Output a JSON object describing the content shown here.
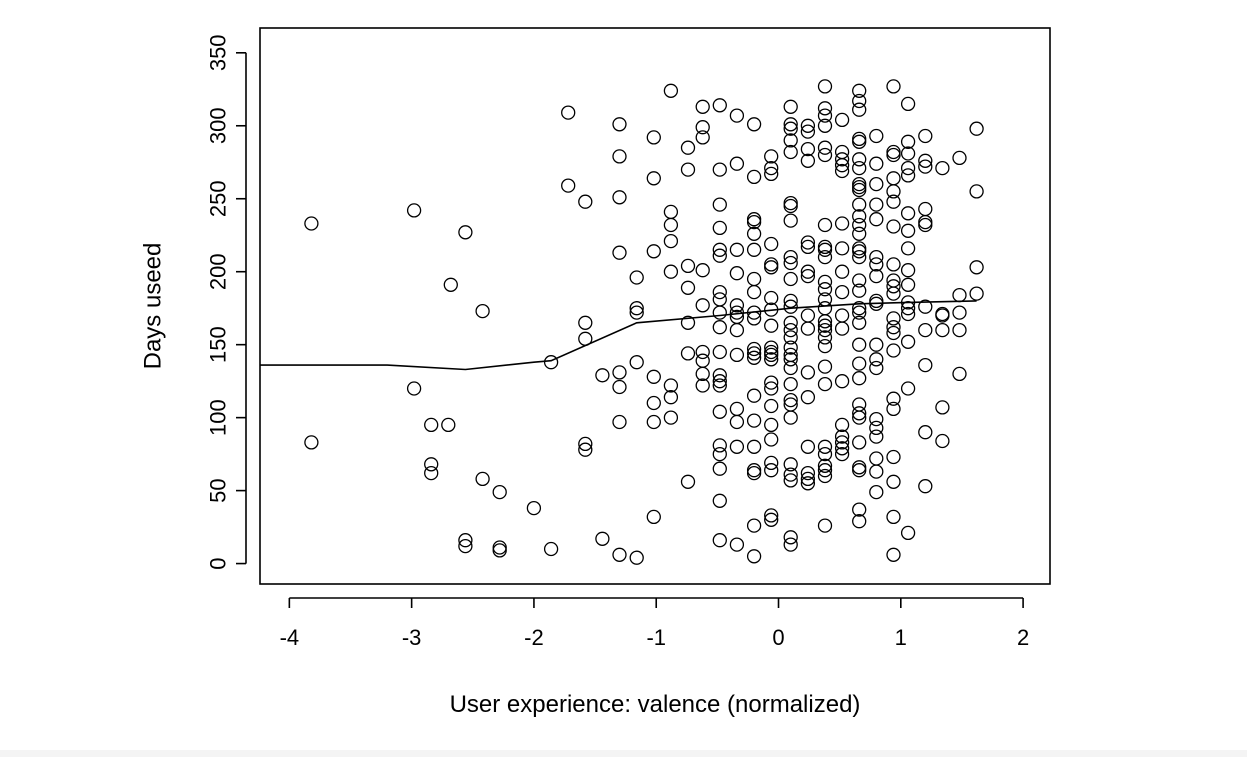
{
  "chart_data": {
    "type": "scatter",
    "xlabel": "User experience: valence (normalized)",
    "ylabel": "Days useed",
    "xlim": [
      -4.24,
      2.22
    ],
    "ylim": [
      -14,
      367
    ],
    "xticks": [
      -4,
      -3,
      -2,
      -1,
      0,
      1,
      2
    ],
    "yticks": [
      0,
      50,
      100,
      150,
      200,
      250,
      300,
      350
    ],
    "grid": false,
    "legend": "none",
    "colors": {
      "points": "#000000",
      "line": "#000000",
      "frame": "#000000"
    },
    "points": [
      [
        -3.82,
        233
      ],
      [
        -3.82,
        83
      ],
      [
        -2.98,
        242
      ],
      [
        -2.98,
        120
      ],
      [
        -2.84,
        95
      ],
      [
        -2.84,
        68
      ],
      [
        -2.84,
        62
      ],
      [
        -2.7,
        95
      ],
      [
        -2.68,
        191
      ],
      [
        -2.56,
        227
      ],
      [
        -2.56,
        16
      ],
      [
        -2.56,
        12
      ],
      [
        -2.42,
        173
      ],
      [
        -2.42,
        58
      ],
      [
        -2.28,
        49
      ],
      [
        -2.28,
        11
      ],
      [
        -2.28,
        9
      ],
      [
        -2.0,
        38
      ],
      [
        -1.86,
        138
      ],
      [
        -1.86,
        10
      ],
      [
        -1.72,
        309
      ],
      [
        -1.72,
        259
      ],
      [
        -1.58,
        248
      ],
      [
        -1.58,
        165
      ],
      [
        -1.58,
        154
      ],
      [
        -1.58,
        82
      ],
      [
        -1.58,
        78
      ],
      [
        -1.44,
        129
      ],
      [
        -1.44,
        17
      ],
      [
        -1.3,
        301
      ],
      [
        -1.3,
        279
      ],
      [
        -1.3,
        251
      ],
      [
        -1.3,
        213
      ],
      [
        -1.3,
        131
      ],
      [
        -1.3,
        121
      ],
      [
        -1.3,
        97
      ],
      [
        -1.3,
        6
      ],
      [
        -1.16,
        196
      ],
      [
        -1.16,
        175
      ],
      [
        -1.16,
        172
      ],
      [
        -1.16,
        138
      ],
      [
        -1.16,
        4
      ],
      [
        -1.02,
        292
      ],
      [
        -1.02,
        264
      ],
      [
        -1.02,
        214
      ],
      [
        -1.02,
        128
      ],
      [
        -1.02,
        110
      ],
      [
        -1.02,
        97
      ],
      [
        -1.02,
        32
      ],
      [
        -0.88,
        324
      ],
      [
        -0.88,
        241
      ],
      [
        -0.88,
        232
      ],
      [
        -0.88,
        221
      ],
      [
        -0.88,
        200
      ],
      [
        -0.88,
        122
      ],
      [
        -0.88,
        114
      ],
      [
        -0.88,
        100
      ],
      [
        -0.74,
        285
      ],
      [
        -0.74,
        270
      ],
      [
        -0.74,
        204
      ],
      [
        -0.74,
        189
      ],
      [
        -0.74,
        165
      ],
      [
        -0.74,
        144
      ],
      [
        -0.74,
        56
      ],
      [
        -0.62,
        313
      ],
      [
        -0.62,
        299
      ],
      [
        -0.62,
        292
      ],
      [
        -0.62,
        201
      ],
      [
        -0.62,
        177
      ],
      [
        -0.62,
        145
      ],
      [
        -0.62,
        139
      ],
      [
        -0.62,
        130
      ],
      [
        -0.62,
        122
      ],
      [
        -0.48,
        314
      ],
      [
        -0.48,
        270
      ],
      [
        -0.48,
        246
      ],
      [
        -0.48,
        230
      ],
      [
        -0.48,
        215
      ],
      [
        -0.48,
        211
      ],
      [
        -0.48,
        186
      ],
      [
        -0.48,
        181
      ],
      [
        -0.48,
        172
      ],
      [
        -0.48,
        162
      ],
      [
        -0.48,
        145
      ],
      [
        -0.48,
        129
      ],
      [
        -0.48,
        125
      ],
      [
        -0.48,
        122
      ],
      [
        -0.48,
        104
      ],
      [
        -0.48,
        81
      ],
      [
        -0.48,
        75
      ],
      [
        -0.48,
        65
      ],
      [
        -0.48,
        43
      ],
      [
        -0.48,
        16
      ],
      [
        -0.34,
        307
      ],
      [
        -0.34,
        274
      ],
      [
        -0.34,
        215
      ],
      [
        -0.34,
        199
      ],
      [
        -0.34,
        177
      ],
      [
        -0.34,
        172
      ],
      [
        -0.34,
        169
      ],
      [
        -0.34,
        160
      ],
      [
        -0.34,
        143
      ],
      [
        -0.34,
        106
      ],
      [
        -0.34,
        97
      ],
      [
        -0.34,
        80
      ],
      [
        -0.34,
        13
      ],
      [
        -0.2,
        301
      ],
      [
        -0.2,
        265
      ],
      [
        -0.2,
        236
      ],
      [
        -0.2,
        234
      ],
      [
        -0.2,
        226
      ],
      [
        -0.2,
        215
      ],
      [
        -0.2,
        195
      ],
      [
        -0.2,
        186
      ],
      [
        -0.2,
        172
      ],
      [
        -0.2,
        168
      ],
      [
        -0.2,
        147
      ],
      [
        -0.2,
        144
      ],
      [
        -0.2,
        141
      ],
      [
        -0.2,
        115
      ],
      [
        -0.2,
        98
      ],
      [
        -0.2,
        80
      ],
      [
        -0.2,
        64
      ],
      [
        -0.2,
        62
      ],
      [
        -0.2,
        26
      ],
      [
        -0.2,
        5
      ],
      [
        -0.06,
        279
      ],
      [
        -0.06,
        271
      ],
      [
        -0.06,
        267
      ],
      [
        -0.06,
        219
      ],
      [
        -0.06,
        205
      ],
      [
        -0.06,
        203
      ],
      [
        -0.06,
        182
      ],
      [
        -0.06,
        174
      ],
      [
        -0.06,
        163
      ],
      [
        -0.06,
        148
      ],
      [
        -0.06,
        145
      ],
      [
        -0.06,
        143
      ],
      [
        -0.06,
        140
      ],
      [
        -0.06,
        124
      ],
      [
        -0.06,
        120
      ],
      [
        -0.06,
        108
      ],
      [
        -0.06,
        95
      ],
      [
        -0.06,
        85
      ],
      [
        -0.06,
        69
      ],
      [
        -0.06,
        64
      ],
      [
        -0.06,
        33
      ],
      [
        -0.06,
        30
      ],
      [
        0.1,
        313
      ],
      [
        0.1,
        301
      ],
      [
        0.1,
        298
      ],
      [
        0.1,
        290
      ],
      [
        0.1,
        282
      ],
      [
        0.1,
        247
      ],
      [
        0.1,
        245
      ],
      [
        0.1,
        235
      ],
      [
        0.1,
        210
      ],
      [
        0.1,
        206
      ],
      [
        0.1,
        195
      ],
      [
        0.1,
        180
      ],
      [
        0.1,
        176
      ],
      [
        0.1,
        165
      ],
      [
        0.1,
        160
      ],
      [
        0.1,
        155
      ],
      [
        0.1,
        148
      ],
      [
        0.1,
        143
      ],
      [
        0.1,
        140
      ],
      [
        0.1,
        134
      ],
      [
        0.1,
        123
      ],
      [
        0.1,
        112
      ],
      [
        0.1,
        109
      ],
      [
        0.1,
        100
      ],
      [
        0.1,
        68
      ],
      [
        0.1,
        61
      ],
      [
        0.1,
        57
      ],
      [
        0.1,
        18
      ],
      [
        0.1,
        13
      ],
      [
        0.24,
        300
      ],
      [
        0.24,
        296
      ],
      [
        0.24,
        284
      ],
      [
        0.24,
        276
      ],
      [
        0.24,
        220
      ],
      [
        0.24,
        217
      ],
      [
        0.24,
        200
      ],
      [
        0.24,
        197
      ],
      [
        0.24,
        170
      ],
      [
        0.24,
        161
      ],
      [
        0.24,
        131
      ],
      [
        0.24,
        114
      ],
      [
        0.24,
        80
      ],
      [
        0.24,
        62
      ],
      [
        0.24,
        58
      ],
      [
        0.24,
        55
      ],
      [
        0.38,
        327
      ],
      [
        0.38,
        312
      ],
      [
        0.38,
        307
      ],
      [
        0.38,
        300
      ],
      [
        0.38,
        285
      ],
      [
        0.38,
        280
      ],
      [
        0.38,
        232
      ],
      [
        0.38,
        217
      ],
      [
        0.38,
        215
      ],
      [
        0.38,
        210
      ],
      [
        0.38,
        193
      ],
      [
        0.38,
        188
      ],
      [
        0.38,
        181
      ],
      [
        0.38,
        175
      ],
      [
        0.38,
        166
      ],
      [
        0.38,
        163
      ],
      [
        0.38,
        160
      ],
      [
        0.38,
        155
      ],
      [
        0.38,
        149
      ],
      [
        0.38,
        135
      ],
      [
        0.38,
        123
      ],
      [
        0.38,
        80
      ],
      [
        0.38,
        75
      ],
      [
        0.38,
        67
      ],
      [
        0.38,
        64
      ],
      [
        0.38,
        60
      ],
      [
        0.38,
        26
      ],
      [
        0.52,
        304
      ],
      [
        0.52,
        282
      ],
      [
        0.52,
        277
      ],
      [
        0.52,
        273
      ],
      [
        0.52,
        269
      ],
      [
        0.52,
        233
      ],
      [
        0.52,
        216
      ],
      [
        0.52,
        200
      ],
      [
        0.52,
        186
      ],
      [
        0.52,
        170
      ],
      [
        0.52,
        161
      ],
      [
        0.52,
        125
      ],
      [
        0.52,
        95
      ],
      [
        0.52,
        87
      ],
      [
        0.52,
        83
      ],
      [
        0.52,
        79
      ],
      [
        0.52,
        75
      ],
      [
        0.66,
        324
      ],
      [
        0.66,
        317
      ],
      [
        0.66,
        311
      ],
      [
        0.66,
        291
      ],
      [
        0.66,
        289
      ],
      [
        0.66,
        277
      ],
      [
        0.66,
        271
      ],
      [
        0.66,
        260
      ],
      [
        0.66,
        258
      ],
      [
        0.66,
        256
      ],
      [
        0.66,
        246
      ],
      [
        0.66,
        238
      ],
      [
        0.66,
        232
      ],
      [
        0.66,
        226
      ],
      [
        0.66,
        216
      ],
      [
        0.66,
        214
      ],
      [
        0.66,
        210
      ],
      [
        0.66,
        194
      ],
      [
        0.66,
        187
      ],
      [
        0.66,
        175
      ],
      [
        0.66,
        172
      ],
      [
        0.66,
        165
      ],
      [
        0.66,
        150
      ],
      [
        0.66,
        137
      ],
      [
        0.66,
        127
      ],
      [
        0.66,
        109
      ],
      [
        0.66,
        103
      ],
      [
        0.66,
        100
      ],
      [
        0.66,
        83
      ],
      [
        0.66,
        66
      ],
      [
        0.66,
        64
      ],
      [
        0.66,
        37
      ],
      [
        0.66,
        29
      ],
      [
        0.8,
        293
      ],
      [
        0.8,
        274
      ],
      [
        0.8,
        260
      ],
      [
        0.8,
        246
      ],
      [
        0.8,
        236
      ],
      [
        0.8,
        210
      ],
      [
        0.8,
        205
      ],
      [
        0.8,
        197
      ],
      [
        0.8,
        180
      ],
      [
        0.8,
        178
      ],
      [
        0.8,
        150
      ],
      [
        0.8,
        140
      ],
      [
        0.8,
        134
      ],
      [
        0.8,
        99
      ],
      [
        0.8,
        93
      ],
      [
        0.8,
        87
      ],
      [
        0.8,
        72
      ],
      [
        0.8,
        63
      ],
      [
        0.8,
        49
      ],
      [
        0.94,
        327
      ],
      [
        0.94,
        282
      ],
      [
        0.94,
        280
      ],
      [
        0.94,
        264
      ],
      [
        0.94,
        255
      ],
      [
        0.94,
        248
      ],
      [
        0.94,
        231
      ],
      [
        0.94,
        205
      ],
      [
        0.94,
        194
      ],
      [
        0.94,
        190
      ],
      [
        0.94,
        185
      ],
      [
        0.94,
        168
      ],
      [
        0.94,
        162
      ],
      [
        0.94,
        158
      ],
      [
        0.94,
        146
      ],
      [
        0.94,
        113
      ],
      [
        0.94,
        106
      ],
      [
        0.94,
        73
      ],
      [
        0.94,
        56
      ],
      [
        0.94,
        32
      ],
      [
        0.94,
        6
      ],
      [
        1.06,
        315
      ],
      [
        1.06,
        289
      ],
      [
        1.06,
        281
      ],
      [
        1.06,
        271
      ],
      [
        1.06,
        266
      ],
      [
        1.06,
        240
      ],
      [
        1.06,
        228
      ],
      [
        1.06,
        216
      ],
      [
        1.06,
        201
      ],
      [
        1.06,
        191
      ],
      [
        1.06,
        179
      ],
      [
        1.06,
        175
      ],
      [
        1.06,
        171
      ],
      [
        1.06,
        152
      ],
      [
        1.06,
        120
      ],
      [
        1.06,
        21
      ],
      [
        1.2,
        293
      ],
      [
        1.2,
        276
      ],
      [
        1.2,
        272
      ],
      [
        1.2,
        243
      ],
      [
        1.2,
        234
      ],
      [
        1.2,
        232
      ],
      [
        1.2,
        176
      ],
      [
        1.2,
        160
      ],
      [
        1.2,
        136
      ],
      [
        1.2,
        90
      ],
      [
        1.2,
        53
      ],
      [
        1.34,
        271
      ],
      [
        1.34,
        171
      ],
      [
        1.34,
        170
      ],
      [
        1.34,
        160
      ],
      [
        1.34,
        107
      ],
      [
        1.34,
        84
      ],
      [
        1.48,
        278
      ],
      [
        1.48,
        184
      ],
      [
        1.48,
        172
      ],
      [
        1.48,
        160
      ],
      [
        1.48,
        130
      ],
      [
        1.62,
        298
      ],
      [
        1.62,
        255
      ],
      [
        1.62,
        203
      ],
      [
        1.62,
        185
      ]
    ],
    "trend_line": [
      [
        -4.24,
        136
      ],
      [
        -3.2,
        136
      ],
      [
        -2.56,
        133
      ],
      [
        -2.0,
        138
      ],
      [
        -1.86,
        139
      ],
      [
        -1.16,
        165
      ],
      [
        -0.48,
        170
      ],
      [
        0.1,
        175
      ],
      [
        0.66,
        178
      ],
      [
        1.06,
        179
      ],
      [
        1.62,
        180
      ]
    ]
  }
}
